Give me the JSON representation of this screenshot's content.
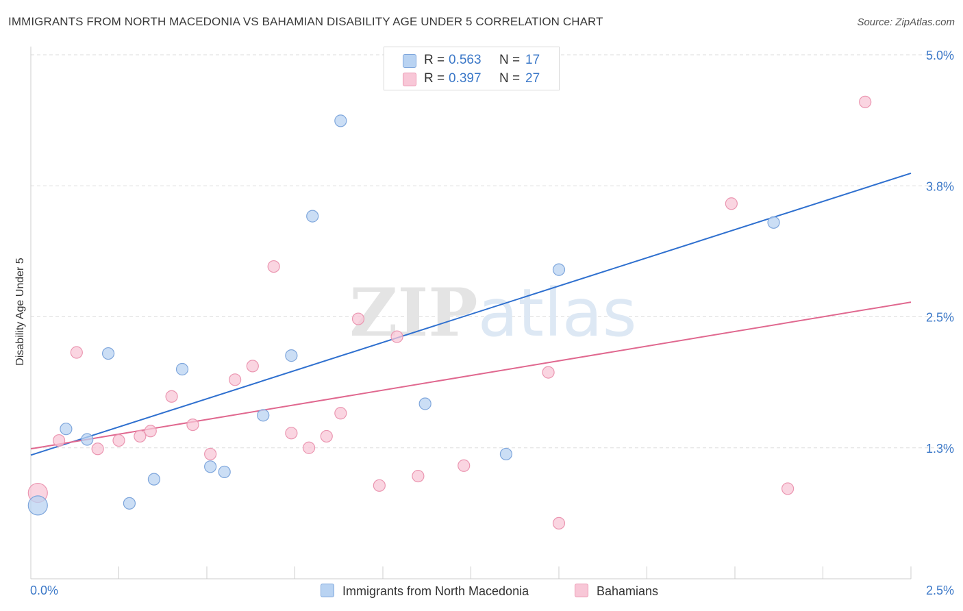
{
  "header": {
    "title": "IMMIGRANTS FROM NORTH MACEDONIA VS BAHAMIAN DISABILITY AGE UNDER 5 CORRELATION CHART",
    "source": "Source: ZipAtlas.com"
  },
  "legend": {
    "blue": {
      "r_label": "R =",
      "r_value": "0.563",
      "n_label": "N =",
      "n_value": "17"
    },
    "pink": {
      "r_label": "R =",
      "r_value": "0.397",
      "n_label": "N =",
      "n_value": "27"
    }
  },
  "bottom_legend": {
    "blue_label": "Immigrants from North Macedonia",
    "pink_label": "Bahamians"
  },
  "colors": {
    "blue_fill": "#b9d3f2",
    "blue_stroke": "#7ea6dc",
    "blue_line": "#2f70cf",
    "pink_fill": "#f8c7d7",
    "pink_stroke": "#eb96b1",
    "pink_line": "#e0688f",
    "tick_text": "#3b78c8",
    "grid": "#dddddd",
    "axis": "#cccccc"
  },
  "chart_data": {
    "type": "scatter",
    "title": "IMMIGRANTS FROM NORTH MACEDONIA VS BAHAMIAN DISABILITY AGE UNDER 5 CORRELATION CHART",
    "xlabel": "",
    "ylabel": "Disability Age Under 5",
    "xlim": [
      0,
      2.5
    ],
    "ylim": [
      0,
      5.0
    ],
    "x_tick_labels": [
      "0.0%",
      "2.5%"
    ],
    "y_ticks": [
      {
        "value": 1.25,
        "label": "1.3%"
      },
      {
        "value": 2.5,
        "label": "2.5%"
      },
      {
        "value": 3.75,
        "label": "3.8%"
      },
      {
        "value": 5.0,
        "label": "5.0%"
      }
    ],
    "grid": true,
    "watermark": "ZIPatlas",
    "series": [
      {
        "name": "Immigrants from North Macedonia",
        "color": "#7ea6dc",
        "points": [
          {
            "x": 0.02,
            "y": 0.7,
            "size": "large"
          },
          {
            "x": 0.1,
            "y": 1.43
          },
          {
            "x": 0.16,
            "y": 1.33
          },
          {
            "x": 0.22,
            "y": 2.15
          },
          {
            "x": 0.28,
            "y": 0.72
          },
          {
            "x": 0.35,
            "y": 0.95
          },
          {
            "x": 0.43,
            "y": 2.0
          },
          {
            "x": 0.51,
            "y": 1.07
          },
          {
            "x": 0.55,
            "y": 1.02
          },
          {
            "x": 0.66,
            "y": 1.56
          },
          {
            "x": 0.74,
            "y": 2.13
          },
          {
            "x": 0.8,
            "y": 3.46
          },
          {
            "x": 0.88,
            "y": 4.37
          },
          {
            "x": 1.12,
            "y": 1.67
          },
          {
            "x": 1.35,
            "y": 1.19
          },
          {
            "x": 1.5,
            "y": 2.95
          },
          {
            "x": 2.11,
            "y": 3.4
          }
        ],
        "trend": {
          "x": [
            0.0,
            2.5
          ],
          "y": [
            1.18,
            3.87
          ]
        }
      },
      {
        "name": "Bahamians",
        "color": "#eb96b1",
        "points": [
          {
            "x": 0.02,
            "y": 0.82,
            "size": "large"
          },
          {
            "x": 0.08,
            "y": 1.32
          },
          {
            "x": 0.13,
            "y": 2.16
          },
          {
            "x": 0.19,
            "y": 1.24
          },
          {
            "x": 0.25,
            "y": 1.32
          },
          {
            "x": 0.31,
            "y": 1.36
          },
          {
            "x": 0.34,
            "y": 1.41
          },
          {
            "x": 0.4,
            "y": 1.74
          },
          {
            "x": 0.46,
            "y": 1.47
          },
          {
            "x": 0.51,
            "y": 1.19
          },
          {
            "x": 0.58,
            "y": 1.9
          },
          {
            "x": 0.63,
            "y": 2.03
          },
          {
            "x": 0.69,
            "y": 2.98
          },
          {
            "x": 0.74,
            "y": 1.39
          },
          {
            "x": 0.79,
            "y": 1.25
          },
          {
            "x": 0.84,
            "y": 1.36
          },
          {
            "x": 0.88,
            "y": 1.58
          },
          {
            "x": 0.93,
            "y": 2.48
          },
          {
            "x": 0.99,
            "y": 0.89
          },
          {
            "x": 1.04,
            "y": 2.31
          },
          {
            "x": 1.1,
            "y": 0.98
          },
          {
            "x": 1.23,
            "y": 1.08
          },
          {
            "x": 1.47,
            "y": 1.97
          },
          {
            "x": 1.5,
            "y": 0.53
          },
          {
            "x": 1.99,
            "y": 3.58
          },
          {
            "x": 2.15,
            "y": 0.86
          },
          {
            "x": 2.37,
            "y": 4.55
          }
        ],
        "trend": {
          "x": [
            0.0,
            2.5
          ],
          "y": [
            1.24,
            2.64
          ]
        }
      }
    ]
  }
}
